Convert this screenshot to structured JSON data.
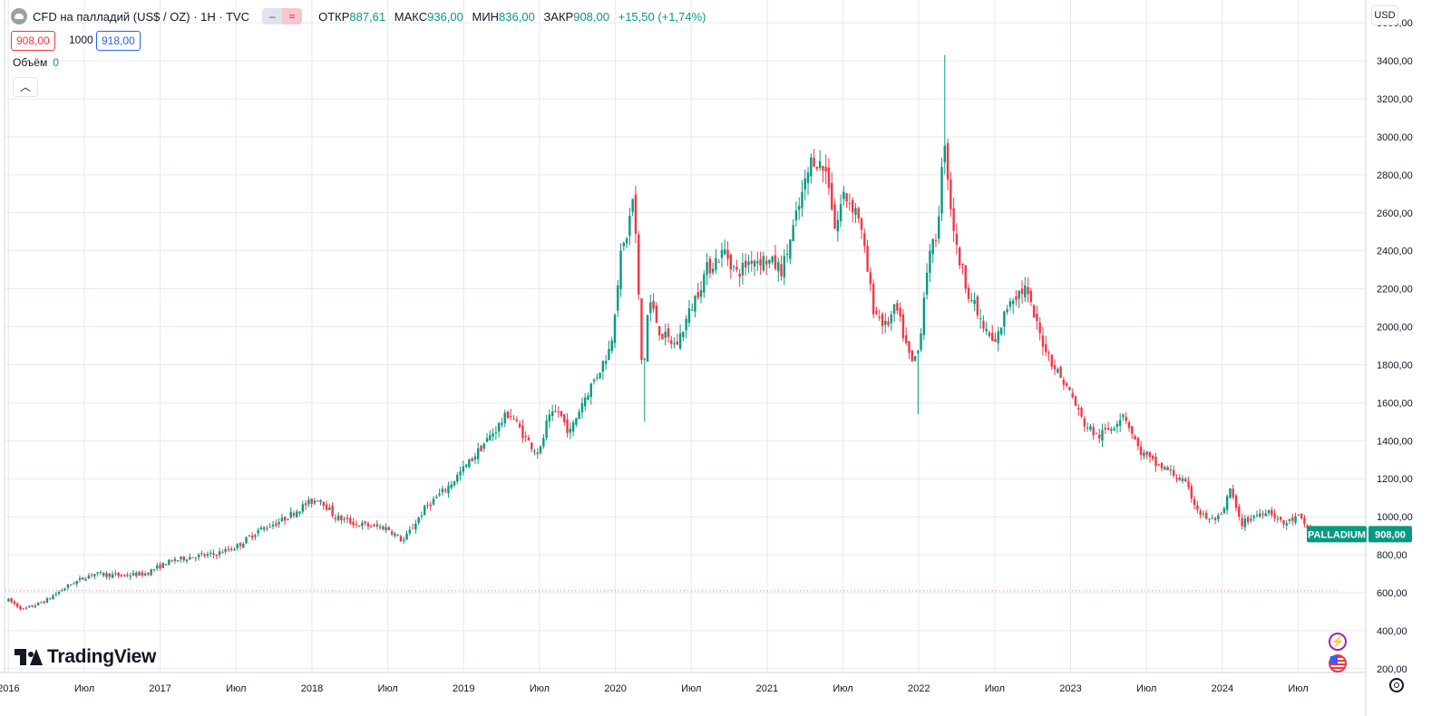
{
  "header": {
    "symbol_title": "CFD на палладий (US$ / OZ) · 1H · TVC",
    "ohlc": [
      {
        "label": "ОТКР",
        "value": "887,61"
      },
      {
        "label": "МАКС",
        "value": "936,00"
      },
      {
        "label": "МИН",
        "value": "836,00"
      },
      {
        "label": "ЗАКР",
        "value": "908,00"
      }
    ],
    "change": "+15,50 (+1,74%)",
    "sell_price": "908,00",
    "spread": "1000",
    "buy_price": "918,00",
    "volume_label": "Объём",
    "volume_value": "0",
    "collapse_icon": "chevron-up-icon"
  },
  "currency_label": "USD",
  "brand": "TradingView",
  "colors": {
    "up": "#089981",
    "down": "#f23645",
    "grid": "#e6eaf0",
    "accent": "#2962ff"
  },
  "chart_data": {
    "type": "candlestick",
    "symbol": "PALLADIUM",
    "last_price": 908,
    "last_price_label": "908,00",
    "reference_line": 610,
    "ylim": [
      180,
      3720
    ],
    "y_ticks": [
      {
        "value": 200,
        "label": "200,00"
      },
      {
        "value": 400,
        "label": "400,00"
      },
      {
        "value": 600,
        "label": "600,00"
      },
      {
        "value": 800,
        "label": "800,00"
      },
      {
        "value": 1000,
        "label": "1000,00"
      },
      {
        "value": 1200,
        "label": "1200,00"
      },
      {
        "value": 1400,
        "label": "1400,00"
      },
      {
        "value": 1600,
        "label": "1600,00"
      },
      {
        "value": 1800,
        "label": "1800,00"
      },
      {
        "value": 2000,
        "label": "2000,00"
      },
      {
        "value": 2200,
        "label": "2200,00"
      },
      {
        "value": 2400,
        "label": "2400,00"
      },
      {
        "value": 2600,
        "label": "2600,00"
      },
      {
        "value": 2800,
        "label": "2800,00"
      },
      {
        "value": 3000,
        "label": "3000,00"
      },
      {
        "value": 3200,
        "label": "3200,00"
      },
      {
        "value": 3400,
        "label": "3400,00"
      },
      {
        "value": 3600,
        "label": "3600,00"
      }
    ],
    "x_range": [
      2015.98,
      2024.76
    ],
    "x_ticks": [
      {
        "t": 2016.0,
        "label": "2016"
      },
      {
        "t": 2016.5,
        "label": "Июл"
      },
      {
        "t": 2017.0,
        "label": "2017"
      },
      {
        "t": 2017.5,
        "label": "Июл"
      },
      {
        "t": 2018.0,
        "label": "2018"
      },
      {
        "t": 2018.5,
        "label": "Июл"
      },
      {
        "t": 2019.0,
        "label": "2019"
      },
      {
        "t": 2019.5,
        "label": "Июл"
      },
      {
        "t": 2020.0,
        "label": "2020"
      },
      {
        "t": 2020.5,
        "label": "Июл"
      },
      {
        "t": 2021.0,
        "label": "2021"
      },
      {
        "t": 2021.5,
        "label": "Июл"
      },
      {
        "t": 2022.0,
        "label": "2022"
      },
      {
        "t": 2022.5,
        "label": "Июл"
      },
      {
        "t": 2023.0,
        "label": "2023"
      },
      {
        "t": 2023.5,
        "label": "Июл"
      },
      {
        "t": 2024.0,
        "label": "2024"
      },
      {
        "t": 2024.5,
        "label": "Июл"
      }
    ],
    "price_path": [
      [
        2016.0,
        560
      ],
      [
        2016.1,
        510
      ],
      [
        2016.25,
        560
      ],
      [
        2016.4,
        640
      ],
      [
        2016.55,
        700
      ],
      [
        2016.75,
        690
      ],
      [
        2016.9,
        700
      ],
      [
        2017.05,
        760
      ],
      [
        2017.2,
        790
      ],
      [
        2017.35,
        800
      ],
      [
        2017.5,
        840
      ],
      [
        2017.65,
        930
      ],
      [
        2017.8,
        980
      ],
      [
        2017.95,
        1060
      ],
      [
        2018.05,
        1100
      ],
      [
        2018.15,
        1000
      ],
      [
        2018.3,
        960
      ],
      [
        2018.5,
        940
      ],
      [
        2018.6,
        870
      ],
      [
        2018.75,
        1050
      ],
      [
        2018.9,
        1160
      ],
      [
        2019.05,
        1300
      ],
      [
        2019.15,
        1400
      ],
      [
        2019.3,
        1550
      ],
      [
        2019.42,
        1400
      ],
      [
        2019.5,
        1330
      ],
      [
        2019.55,
        1500
      ],
      [
        2019.62,
        1560
      ],
      [
        2019.7,
        1440
      ],
      [
        2019.78,
        1600
      ],
      [
        2019.9,
        1780
      ],
      [
        2019.97,
        1900
      ],
      [
        2020.03,
        2350
      ],
      [
        2020.08,
        2500
      ],
      [
        2020.12,
        2700
      ],
      [
        2020.18,
        1700
      ],
      [
        2020.22,
        2150
      ],
      [
        2020.3,
        1960
      ],
      [
        2020.4,
        1900
      ],
      [
        2020.5,
        2100
      ],
      [
        2020.6,
        2300
      ],
      [
        2020.72,
        2400
      ],
      [
        2020.8,
        2280
      ],
      [
        2020.9,
        2360
      ],
      [
        2021.0,
        2350
      ],
      [
        2021.1,
        2300
      ],
      [
        2021.2,
        2600
      ],
      [
        2021.3,
        2900
      ],
      [
        2021.4,
        2800
      ],
      [
        2021.45,
        2500
      ],
      [
        2021.5,
        2700
      ],
      [
        2021.6,
        2600
      ],
      [
        2021.7,
        2100
      ],
      [
        2021.78,
        2000
      ],
      [
        2021.85,
        2100
      ],
      [
        2021.95,
        1800
      ],
      [
        2022.0,
        1880
      ],
      [
        2022.05,
        2300
      ],
      [
        2022.12,
        2500
      ],
      [
        2022.17,
        3000
      ],
      [
        2022.2,
        2700
      ],
      [
        2022.25,
        2400
      ],
      [
        2022.32,
        2200
      ],
      [
        2022.42,
        2000
      ],
      [
        2022.5,
        1900
      ],
      [
        2022.6,
        2150
      ],
      [
        2022.7,
        2200
      ],
      [
        2022.8,
        1950
      ],
      [
        2022.9,
        1780
      ],
      [
        2023.0,
        1650
      ],
      [
        2023.08,
        1500
      ],
      [
        2023.18,
        1420
      ],
      [
        2023.28,
        1480
      ],
      [
        2023.35,
        1550
      ],
      [
        2023.45,
        1350
      ],
      [
        2023.55,
        1280
      ],
      [
        2023.65,
        1240
      ],
      [
        2023.75,
        1180
      ],
      [
        2023.85,
        1020
      ],
      [
        2023.92,
        980
      ],
      [
        2024.0,
        1000
      ],
      [
        2024.05,
        1150
      ],
      [
        2024.12,
        960
      ],
      [
        2024.2,
        1000
      ],
      [
        2024.3,
        1040
      ],
      [
        2024.4,
        960
      ],
      [
        2024.5,
        1000
      ],
      [
        2024.55,
        950
      ],
      [
        2024.6,
        908
      ]
    ]
  }
}
